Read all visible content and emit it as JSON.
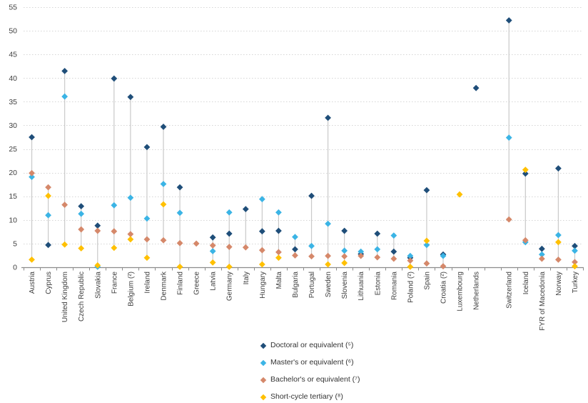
{
  "chart_data": {
    "type": "scatter",
    "title": "",
    "xlabel": "",
    "ylabel": "",
    "ylim": [
      0,
      55
    ],
    "yticks": [
      0,
      5,
      10,
      15,
      20,
      25,
      30,
      35,
      40,
      45,
      50,
      55
    ],
    "grid": "horizontal-dotted",
    "legend_position": "bottom-center",
    "high_low_lines": true,
    "gap_slot_index": 28,
    "categories": [
      "Austria",
      "Cyprus",
      "United Kingdom",
      "Czech Republic",
      "Slovakia",
      "France",
      "Belgium (²)",
      "Ireland",
      "Denmark",
      "Finland",
      "Greece",
      "Latvia",
      "Germany",
      "Italy",
      "Hungary",
      "Malta",
      "Bulgaria",
      "Portugal",
      "Sweden",
      "Slovenia",
      "Lithuania",
      "Estonia",
      "Romania",
      "Poland (²)",
      "Spain",
      "Croatia (²)",
      "Luxembourg",
      "Netherlands",
      "Switzerland",
      "Iceland",
      "FYR of Macedonia",
      "Norway",
      "Turkey"
    ],
    "series": [
      {
        "name": "Doctoral or equivalent (⁵)",
        "color": "#1F4E79",
        "values": [
          27.5,
          4.7,
          41.5,
          12.9,
          8.8,
          39.9,
          36.0,
          25.4,
          29.7,
          16.9,
          null,
          6.3,
          7.1,
          12.3,
          7.6,
          7.7,
          3.8,
          15.1,
          31.6,
          7.7,
          2.8,
          7.1,
          3.3,
          2.0,
          16.3,
          2.7,
          null,
          37.9,
          52.2,
          19.8,
          3.9,
          20.9,
          4.5
        ]
      },
      {
        "name": "Master's or equivalent (⁶)",
        "color": "#3BB4E5",
        "values": [
          19.1,
          11.0,
          36.1,
          11.3,
          0.1,
          13.1,
          14.7,
          10.3,
          17.6,
          11.5,
          null,
          3.4,
          11.6,
          null,
          14.4,
          11.6,
          6.4,
          4.5,
          9.2,
          3.5,
          3.3,
          3.8,
          6.7,
          2.4,
          4.7,
          2.4,
          null,
          null,
          27.4,
          5.3,
          2.7,
          6.8,
          3.5
        ]
      },
      {
        "name": "Bachelor's or equivalent (⁷)",
        "color": "#D5886A",
        "values": [
          19.9,
          16.9,
          13.2,
          8.0,
          7.7,
          7.6,
          7.0,
          5.9,
          5.7,
          5.1,
          5.0,
          4.6,
          4.3,
          4.2,
          3.6,
          3.2,
          2.5,
          2.3,
          2.4,
          2.3,
          2.4,
          2.1,
          1.8,
          1.4,
          0.8,
          0.2,
          null,
          null,
          10.1,
          5.7,
          1.8,
          1.6,
          1.1
        ]
      },
      {
        "name": "Short-cycle tertiary (⁸)",
        "color": "#FFC000",
        "values": [
          1.6,
          15.1,
          4.8,
          4.0,
          0.4,
          4.1,
          5.9,
          2.0,
          13.3,
          0.1,
          null,
          1.0,
          0.1,
          null,
          0.6,
          2.0,
          null,
          null,
          0.6,
          0.9,
          null,
          null,
          null,
          0.1,
          5.6,
          null,
          15.4,
          null,
          null,
          20.6,
          null,
          5.3,
          0.2
        ]
      }
    ],
    "colors": {
      "stem": "#C9C9C9",
      "gridline": "#D6D6D6",
      "axis": "#8C8C8C",
      "tick_label": "#404040"
    }
  }
}
